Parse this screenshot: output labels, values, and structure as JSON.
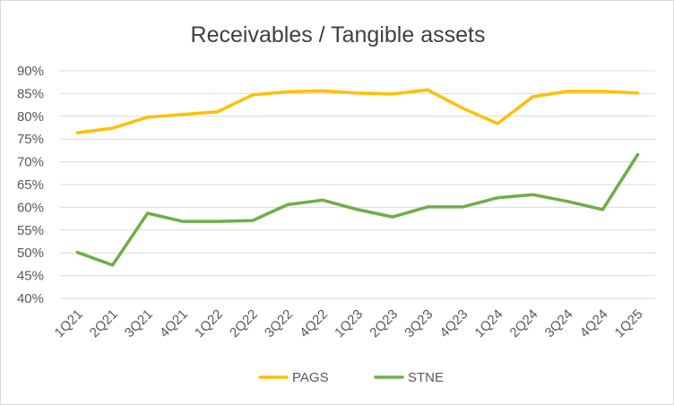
{
  "chart_data": {
    "type": "line",
    "title": "Receivables / Tangible assets",
    "xlabel": "",
    "ylabel": "",
    "categories": [
      "1Q21",
      "2Q21",
      "3Q21",
      "4Q21",
      "1Q22",
      "2Q22",
      "3Q22",
      "4Q22",
      "1Q23",
      "2Q23",
      "3Q23",
      "4Q23",
      "1Q24",
      "2Q24",
      "3Q24",
      "4Q24",
      "1Q25"
    ],
    "ylim": [
      0.4,
      0.9
    ],
    "yticks": [
      0.4,
      0.45,
      0.5,
      0.55,
      0.6,
      0.65,
      0.7,
      0.75,
      0.8,
      0.85,
      0.9
    ],
    "ytick_labels": [
      "40%",
      "45%",
      "50%",
      "55%",
      "60%",
      "65%",
      "70%",
      "75%",
      "80%",
      "85%",
      "90%"
    ],
    "grid": "horizontal",
    "legend_position": "bottom",
    "series": [
      {
        "name": "PAGS",
        "color": "#FFC000",
        "values": [
          0.764,
          0.774,
          0.798,
          0.804,
          0.81,
          0.847,
          0.854,
          0.856,
          0.851,
          0.849,
          0.858,
          0.818,
          0.784,
          0.843,
          0.855,
          0.855,
          0.851
        ]
      },
      {
        "name": "STNE",
        "color": "#70AD47",
        "values": [
          0.501,
          0.473,
          0.587,
          0.569,
          0.569,
          0.571,
          0.606,
          0.616,
          0.595,
          0.579,
          0.601,
          0.601,
          0.621,
          0.628,
          0.613,
          0.595,
          0.716
        ]
      }
    ]
  }
}
